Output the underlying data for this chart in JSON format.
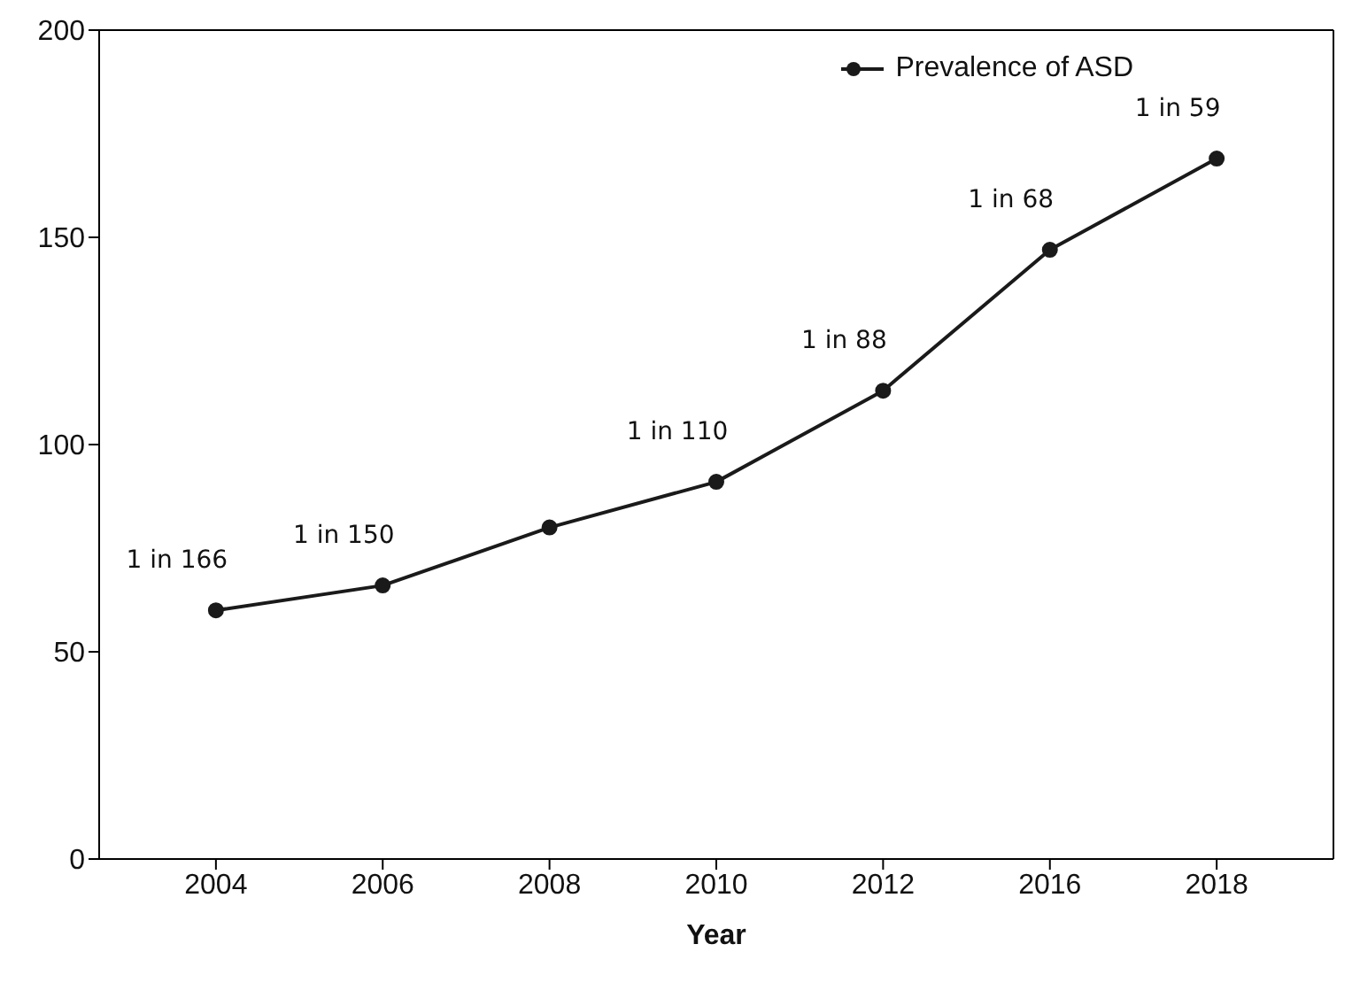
{
  "chart_data": {
    "type": "line",
    "xlabel": "Year",
    "categories": [
      "2004",
      "2006",
      "2008",
      "2010",
      "2012",
      "2016",
      "2018"
    ],
    "series": [
      {
        "name": "Prevalence of ASD",
        "color": "#1a1a1a",
        "values": [
          60,
          66,
          80,
          91,
          113,
          147,
          169
        ]
      }
    ],
    "annotations": [
      {
        "text": "1 in 166",
        "x": "2004",
        "y": 60
      },
      {
        "text": "1 in 150",
        "x": "2006",
        "y": 66
      },
      {
        "text": "1 in 110",
        "x": "2010",
        "y": 91
      },
      {
        "text": "1 in 88",
        "x": "2012",
        "y": 113
      },
      {
        "text": "1 in 68",
        "x": "2016",
        "y": 147
      },
      {
        "text": "1 in 59",
        "x": "2018",
        "y": 169
      }
    ],
    "ylim": [
      0,
      200
    ],
    "yticks": [
      0,
      50,
      100,
      150,
      200
    ],
    "legend": "top right",
    "marker": "circle",
    "line_style": "solid"
  }
}
